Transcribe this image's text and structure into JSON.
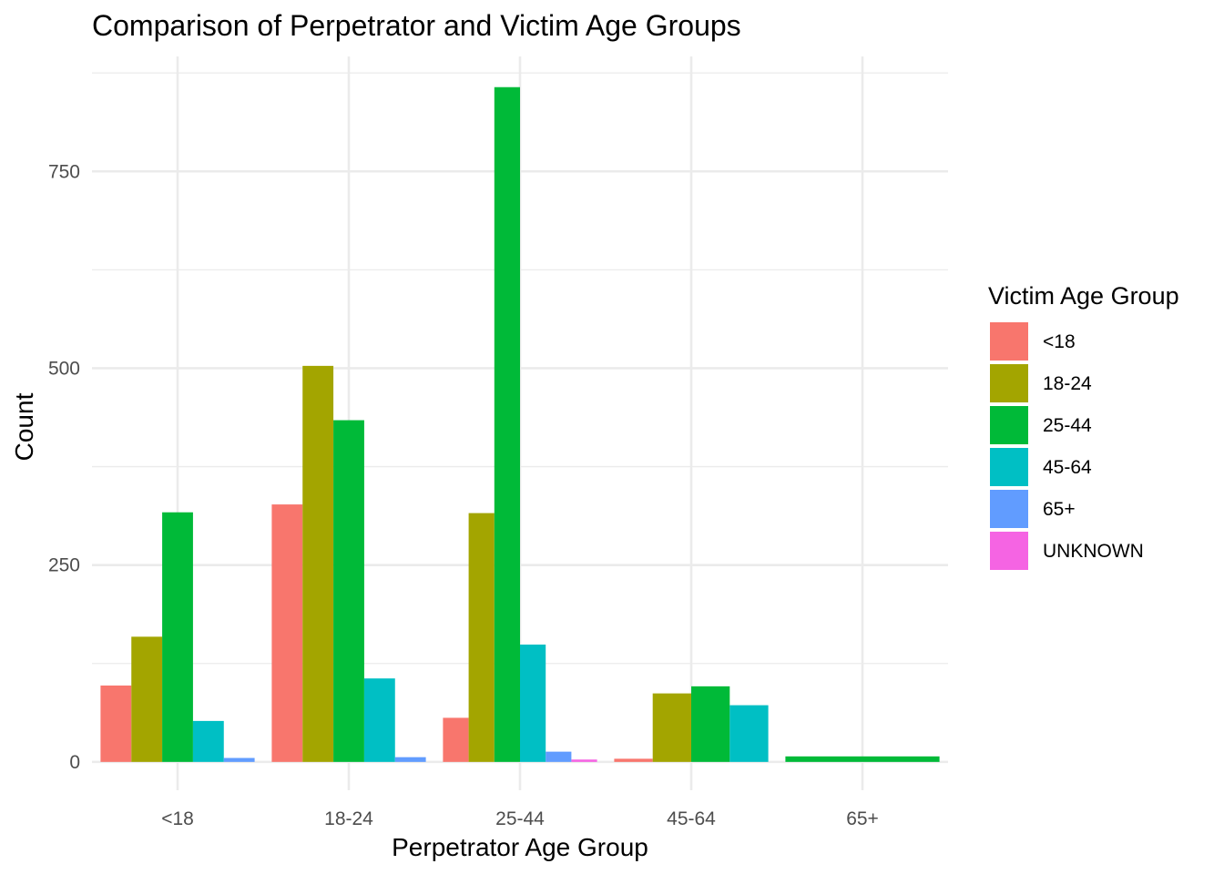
{
  "chart_data": {
    "type": "bar",
    "title": "Comparison of Perpetrator and Victim Age Groups",
    "xlabel": "Perpetrator Age Group",
    "ylabel": "Count",
    "categories": [
      "<18",
      "18-24",
      "25-44",
      "45-64",
      "65+"
    ],
    "ylim": [
      -36,
      896
    ],
    "yticks": [
      0,
      250,
      500,
      750
    ],
    "grid": true,
    "legend": {
      "title": "Victim Age Group",
      "position": "right"
    },
    "series": [
      {
        "name": "<18",
        "color": "#F8766D",
        "values": [
          97,
          327,
          56,
          4,
          null
        ]
      },
      {
        "name": "18-24",
        "color": "#A3A500",
        "values": [
          159,
          503,
          316,
          87,
          null
        ]
      },
      {
        "name": "25-44",
        "color": "#00BA38",
        "values": [
          317,
          434,
          857,
          96,
          7
        ]
      },
      {
        "name": "45-64",
        "color": "#00BFC4",
        "values": [
          52,
          106,
          149,
          72,
          null
        ]
      },
      {
        "name": "65+",
        "color": "#619CFF",
        "values": [
          5,
          6,
          13,
          null,
          null
        ]
      },
      {
        "name": "UNKNOWN",
        "color": "#F564E3",
        "values": [
          null,
          null,
          3,
          null,
          null
        ]
      }
    ]
  }
}
